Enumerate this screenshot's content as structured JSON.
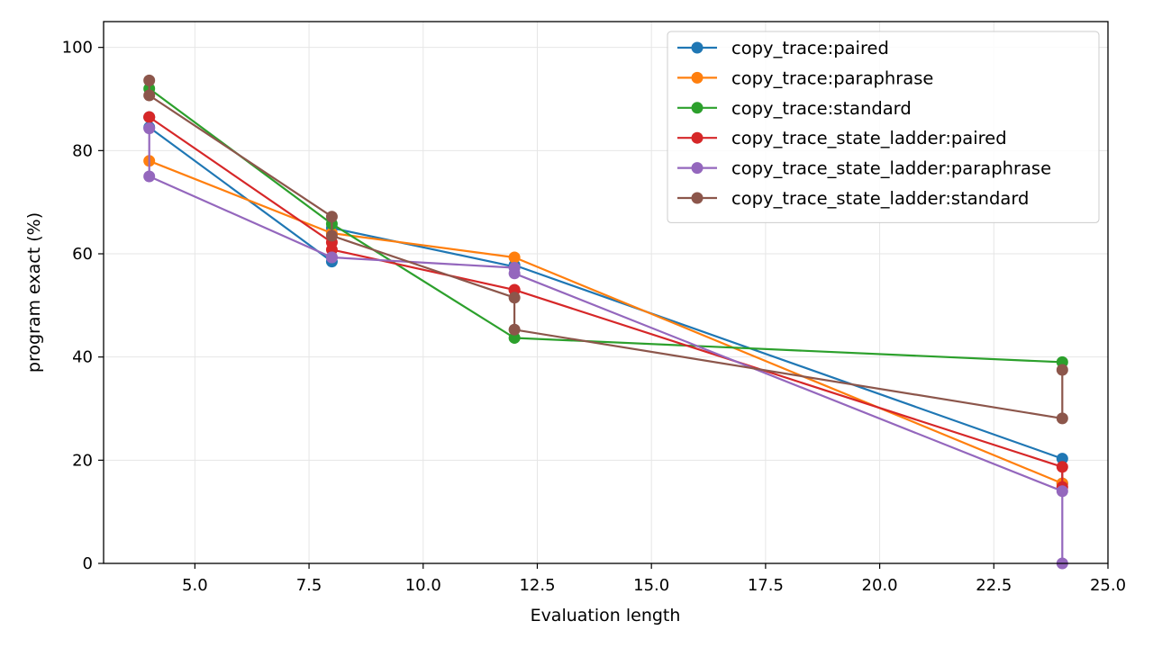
{
  "chart_data": {
    "type": "line",
    "title": "",
    "xlabel": "Evaluation length",
    "ylabel": "program exact (%)",
    "xlim": [
      3.0,
      25.0
    ],
    "ylim": [
      0,
      105
    ],
    "xticks": [
      5.0,
      7.5,
      10.0,
      12.5,
      15.0,
      17.5,
      20.0,
      22.5,
      25.0
    ],
    "xtick_labels": [
      "5.0",
      "7.5",
      "10.0",
      "12.5",
      "15.0",
      "17.5",
      "20.0",
      "22.5",
      "25.0"
    ],
    "yticks": [
      0,
      20,
      40,
      60,
      80,
      100
    ],
    "ytick_labels": [
      "0",
      "20",
      "40",
      "60",
      "80",
      "100"
    ],
    "grid": true,
    "legend_position": "top-right",
    "series": [
      {
        "name": "copy_trace:paired",
        "color": "#1f77b4",
        "x": [
          4,
          4,
          8,
          8,
          12,
          12,
          24,
          24
        ],
        "y": [
          86.5,
          84.5,
          58.5,
          65.0,
          57.5,
          57.8,
          20.3,
          15.5
        ]
      },
      {
        "name": "copy_trace:paraphrase",
        "color": "#ff7f0e",
        "x": [
          4,
          8,
          12,
          24
        ],
        "y": [
          78.0,
          64.0,
          59.3,
          15.5
        ]
      },
      {
        "name": "copy_trace:standard",
        "color": "#2ca02c",
        "x": [
          4,
          8,
          12,
          24
        ],
        "y": [
          92.0,
          65.8,
          43.7,
          39.0
        ]
      },
      {
        "name": "copy_trace_state_ladder:paired",
        "color": "#d62728",
        "x": [
          4,
          4,
          8,
          8,
          12,
          12,
          24,
          24
        ],
        "y": [
          86.5,
          86.5,
          62.2,
          60.8,
          53.0,
          53.0,
          18.7,
          14.8
        ]
      },
      {
        "name": "copy_trace_state_ladder:paraphrase",
        "color": "#9467bd",
        "x": [
          4,
          4,
          8,
          8,
          12,
          12,
          24,
          24
        ],
        "y": [
          84.3,
          75.0,
          59.3,
          59.3,
          57.3,
          56.2,
          14.0,
          0.0
        ]
      },
      {
        "name": "copy_trace_state_ladder:standard",
        "color": "#8c564b",
        "x": [
          4,
          4,
          8,
          8,
          12,
          12,
          24,
          24
        ],
        "y": [
          93.6,
          90.7,
          67.2,
          63.5,
          51.5,
          45.3,
          28.1,
          37.5
        ]
      }
    ]
  }
}
